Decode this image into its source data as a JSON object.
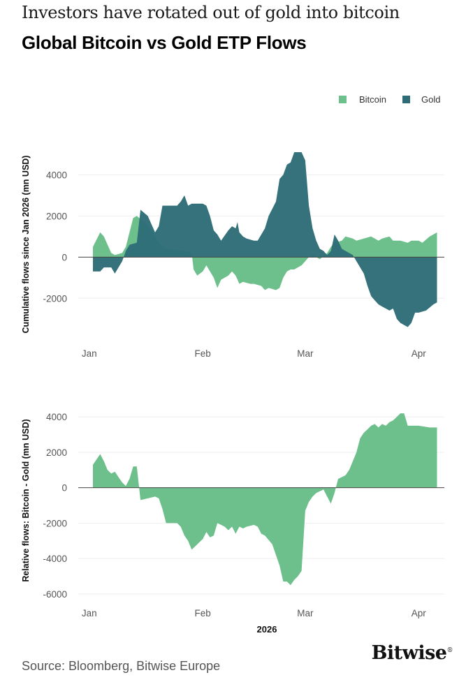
{
  "header": {
    "subtitle": "Investors have rotated out of gold into bitcoin",
    "title": "Global Bitcoin vs Gold ETP Flows"
  },
  "footer": {
    "source": "Source: Bloomberg, Bitwise Europe",
    "brand": "Bitwise",
    "brand_mark": "®"
  },
  "colors": {
    "bitcoin": "#6dbf8c",
    "gold": "#2e6d78",
    "overlap": "#1f6e64",
    "zero_line": "#444444",
    "grid": "#eeeeee",
    "tick": "#555555"
  },
  "chart_data": [
    {
      "type": "area",
      "ylabel": "Cumulative flows since Jan 2026 (mn USD)",
      "xlabel": "",
      "xticks": [
        {
          "label": "Jan",
          "x": 0
        },
        {
          "label": "Feb",
          "x": 31
        },
        {
          "label": "Mar",
          "x": 59
        },
        {
          "label": "Apr",
          "x": 90
        }
      ],
      "yticks": [
        -2000,
        0,
        2000,
        4000
      ],
      "xlim": [
        -3,
        97
      ],
      "ylim": [
        -4400,
        5100
      ],
      "grid": true,
      "legend": {
        "position": "top-right"
      },
      "series": [
        {
          "name": "Bitcoin",
          "points": [
            [
              1,
              500
            ],
            [
              3,
              1200
            ],
            [
              4,
              1000
            ],
            [
              6,
              200
            ],
            [
              7,
              100
            ],
            [
              9,
              200
            ],
            [
              10,
              500
            ],
            [
              12,
              1900
            ],
            [
              13,
              2000
            ],
            [
              15,
              1700
            ],
            [
              17,
              1300
            ],
            [
              19,
              700
            ],
            [
              21,
              400
            ],
            [
              23,
              350
            ],
            [
              26,
              300
            ],
            [
              28,
              200
            ],
            [
              28.5,
              -600
            ],
            [
              29.5,
              -900
            ],
            [
              31,
              -700
            ],
            [
              32,
              -400
            ],
            [
              33,
              -700
            ],
            [
              34,
              -1000
            ],
            [
              35,
              -1500
            ],
            [
              36,
              -1100
            ],
            [
              38,
              -900
            ],
            [
              39,
              -700
            ],
            [
              40,
              -900
            ],
            [
              41,
              -1300
            ],
            [
              42,
              -1200
            ],
            [
              44,
              -1300
            ],
            [
              45,
              -1300
            ],
            [
              47,
              -1400
            ],
            [
              48,
              -1600
            ],
            [
              49,
              -1500
            ],
            [
              51,
              -1600
            ],
            [
              52,
              -1500
            ],
            [
              53,
              -1000
            ],
            [
              54,
              -700
            ],
            [
              55,
              -600
            ],
            [
              56,
              -600
            ],
            [
              58,
              -400
            ],
            [
              59,
              -200
            ],
            [
              60,
              0
            ],
            [
              61,
              100
            ],
            [
              62,
              0
            ],
            [
              63,
              -100
            ],
            [
              65,
              200
            ],
            [
              66,
              500
            ],
            [
              67,
              700
            ],
            [
              69,
              800
            ],
            [
              70,
              1000
            ],
            [
              72,
              900
            ],
            [
              73,
              800
            ],
            [
              75,
              900
            ],
            [
              77,
              1000
            ],
            [
              78,
              900
            ],
            [
              79,
              800
            ],
            [
              80,
              900
            ],
            [
              82,
              1000
            ],
            [
              83,
              800
            ],
            [
              84,
              800
            ],
            [
              85,
              800
            ],
            [
              87,
              700
            ],
            [
              88,
              800
            ],
            [
              90,
              800
            ],
            [
              91,
              700
            ],
            [
              93,
              1000
            ],
            [
              94,
              1100
            ],
            [
              95,
              1200
            ]
          ]
        },
        {
          "name": "Gold",
          "points": [
            [
              1,
              -700
            ],
            [
              3,
              -700
            ],
            [
              4,
              -500
            ],
            [
              6,
              -500
            ],
            [
              7,
              -800
            ],
            [
              8,
              -500
            ],
            [
              9,
              -200
            ],
            [
              10,
              300
            ],
            [
              11,
              600
            ],
            [
              13,
              700
            ],
            [
              14,
              2300
            ],
            [
              16,
              2000
            ],
            [
              17,
              1600
            ],
            [
              18,
              1200
            ],
            [
              19,
              1500
            ],
            [
              20,
              2500
            ],
            [
              22,
              2500
            ],
            [
              24,
              2500
            ],
            [
              25,
              2700
            ],
            [
              26,
              3000
            ],
            [
              27,
              2500
            ],
            [
              28,
              2600
            ],
            [
              30,
              2600
            ],
            [
              31,
              2600
            ],
            [
              32,
              2500
            ],
            [
              33,
              2000
            ],
            [
              34,
              1300
            ],
            [
              35,
              1100
            ],
            [
              36,
              800
            ],
            [
              38,
              1300
            ],
            [
              39,
              1500
            ],
            [
              40,
              1400
            ],
            [
              40.5,
              1700
            ],
            [
              41,
              1200
            ],
            [
              42,
              1000
            ],
            [
              43,
              900
            ],
            [
              45,
              800
            ],
            [
              46,
              800
            ],
            [
              48,
              1400
            ],
            [
              49,
              2000
            ],
            [
              51,
              2700
            ],
            [
              52,
              3800
            ],
            [
              53,
              4000
            ],
            [
              54,
              4500
            ],
            [
              55,
              4600
            ],
            [
              56,
              5100
            ],
            [
              58,
              5100
            ],
            [
              59,
              4700
            ],
            [
              60,
              2500
            ],
            [
              61,
              1400
            ],
            [
              62,
              800
            ],
            [
              63,
              400
            ],
            [
              64,
              300
            ],
            [
              65,
              100
            ],
            [
              66,
              300
            ],
            [
              67,
              1100
            ],
            [
              68,
              800
            ],
            [
              69,
              400
            ],
            [
              70,
              300
            ],
            [
              71,
              200
            ],
            [
              72,
              100
            ],
            [
              73,
              -200
            ],
            [
              74,
              -500
            ],
            [
              75,
              -800
            ],
            [
              76,
              -1400
            ],
            [
              77,
              -1900
            ],
            [
              78,
              -2100
            ],
            [
              79,
              -2300
            ],
            [
              80,
              -2400
            ],
            [
              81,
              -2500
            ],
            [
              82,
              -2600
            ],
            [
              83,
              -2500
            ],
            [
              84,
              -3000
            ],
            [
              85,
              -3200
            ],
            [
              86,
              -3300
            ],
            [
              87,
              -3400
            ],
            [
              88,
              -3200
            ],
            [
              89,
              -2700
            ],
            [
              90,
              -2700
            ],
            [
              92,
              -2600
            ],
            [
              94,
              -2300
            ],
            [
              95,
              -2200
            ]
          ]
        }
      ]
    },
    {
      "type": "area",
      "ylabel": "Relative flows: Bitcoin - Gold (mn USD)",
      "xlabel": "2026",
      "xticks": [
        {
          "label": "Jan",
          "x": 0
        },
        {
          "label": "Feb",
          "x": 31
        },
        {
          "label": "Mar",
          "x": 59
        },
        {
          "label": "Apr",
          "x": 90
        }
      ],
      "yticks": [
        -6000,
        -4000,
        -2000,
        0,
        2000,
        4000
      ],
      "xlim": [
        -3,
        97
      ],
      "ylim": [
        -6400,
        4600
      ],
      "grid": true,
      "series": [
        {
          "name": "",
          "points": [
            [
              1,
              1300
            ],
            [
              3,
              1900
            ],
            [
              4,
              1500
            ],
            [
              5,
              1000
            ],
            [
              6,
              800
            ],
            [
              7,
              900
            ],
            [
              8,
              600
            ],
            [
              9,
              300
            ],
            [
              10,
              100
            ],
            [
              11,
              500
            ],
            [
              12,
              1200
            ],
            [
              13,
              1200
            ],
            [
              14,
              -700
            ],
            [
              16,
              -600
            ],
            [
              18,
              -500
            ],
            [
              19,
              -600
            ],
            [
              20,
              -1200
            ],
            [
              21,
              -2000
            ],
            [
              24,
              -2000
            ],
            [
              25,
              -2200
            ],
            [
              26,
              -2700
            ],
            [
              27,
              -3000
            ],
            [
              28,
              -3500
            ],
            [
              29,
              -3300
            ],
            [
              30,
              -3100
            ],
            [
              31,
              -2900
            ],
            [
              32,
              -2500
            ],
            [
              33,
              -2800
            ],
            [
              34,
              -2700
            ],
            [
              35,
              -2000
            ],
            [
              36,
              -2100
            ],
            [
              37,
              -2200
            ],
            [
              38,
              -2400
            ],
            [
              39,
              -2200
            ],
            [
              40,
              -2600
            ],
            [
              41,
              -2200
            ],
            [
              42,
              -2300
            ],
            [
              43,
              -2200
            ],
            [
              45,
              -2100
            ],
            [
              46,
              -2200
            ],
            [
              47,
              -2600
            ],
            [
              48,
              -2700
            ],
            [
              50,
              -3200
            ],
            [
              51,
              -3800
            ],
            [
              52,
              -4400
            ],
            [
              53,
              -5300
            ],
            [
              54,
              -5300
            ],
            [
              55,
              -5500
            ],
            [
              56,
              -5200
            ],
            [
              57,
              -5000
            ],
            [
              58,
              -4700
            ],
            [
              59,
              -1300
            ],
            [
              60,
              -800
            ],
            [
              61,
              -500
            ],
            [
              62,
              -300
            ],
            [
              63,
              -200
            ],
            [
              64,
              -100
            ],
            [
              65,
              -500
            ],
            [
              66,
              -900
            ],
            [
              67,
              -300
            ],
            [
              68,
              500
            ],
            [
              69,
              600
            ],
            [
              70,
              700
            ],
            [
              71,
              1000
            ],
            [
              72,
              1500
            ],
            [
              73,
              2000
            ],
            [
              74,
              2800
            ],
            [
              75,
              3100
            ],
            [
              76,
              3300
            ],
            [
              77,
              3500
            ],
            [
              78,
              3600
            ],
            [
              79,
              3400
            ],
            [
              80,
              3600
            ],
            [
              81,
              3500
            ],
            [
              82,
              3700
            ],
            [
              83,
              3800
            ],
            [
              84,
              4000
            ],
            [
              85,
              4200
            ],
            [
              86,
              4200
            ],
            [
              87,
              3500
            ],
            [
              90,
              3500
            ],
            [
              93,
              3400
            ],
            [
              95,
              3400
            ]
          ]
        }
      ]
    }
  ]
}
